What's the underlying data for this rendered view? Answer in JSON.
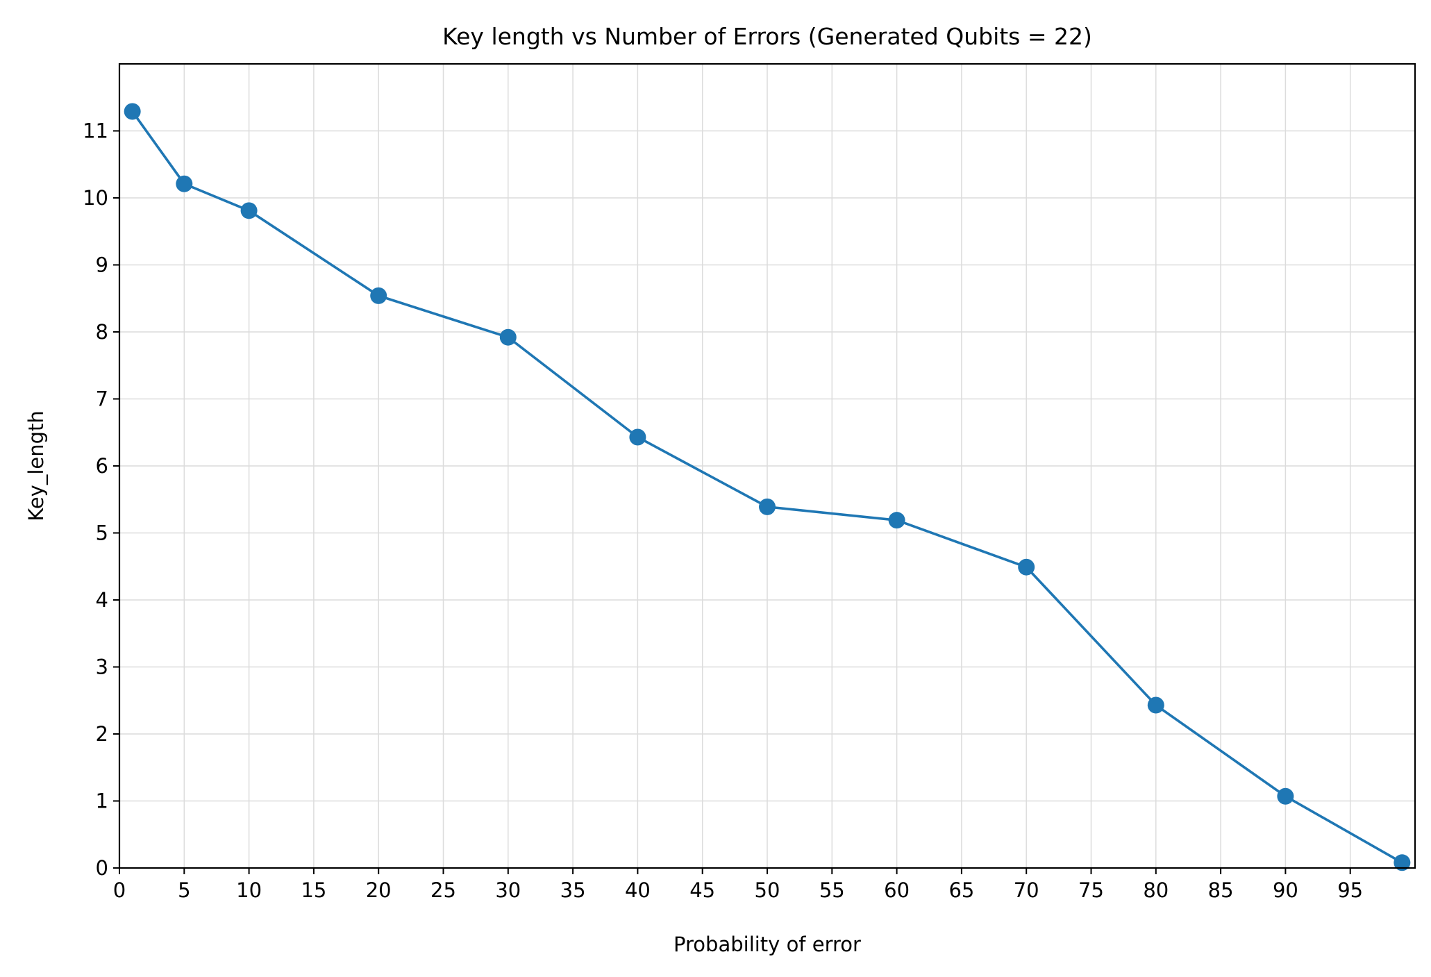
{
  "chart_data": {
    "type": "line",
    "title": "Key length vs Number of Errors (Generated Qubits = 22)",
    "xlabel": "Probability of error",
    "ylabel": "Key_length",
    "xlim": [
      0,
      100
    ],
    "ylim": [
      0,
      12
    ],
    "x_ticks": [
      0,
      5,
      10,
      15,
      20,
      25,
      30,
      35,
      40,
      45,
      50,
      55,
      60,
      65,
      70,
      75,
      80,
      85,
      90,
      95
    ],
    "y_ticks": [
      0,
      1,
      2,
      3,
      4,
      5,
      6,
      7,
      8,
      9,
      10,
      11
    ],
    "grid": true,
    "legend": "none",
    "series": [
      {
        "color": "#1f77b4",
        "marker": "circle",
        "x": [
          1,
          5,
          10,
          20,
          30,
          40,
          50,
          60,
          70,
          80,
          90,
          99
        ],
        "y": [
          11.29,
          10.21,
          9.81,
          8.54,
          7.92,
          6.43,
          5.39,
          5.19,
          4.49,
          2.43,
          1.07,
          0.08
        ]
      }
    ]
  }
}
